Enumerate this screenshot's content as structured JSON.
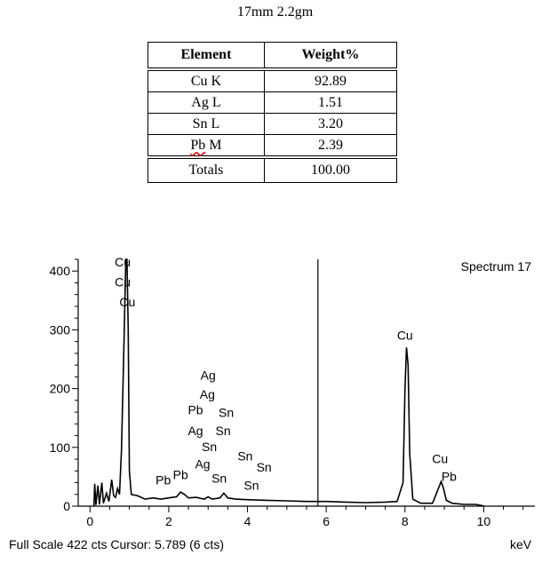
{
  "caption": "17mm  2.2gm",
  "table": {
    "headers": [
      "Element",
      "Weight%"
    ],
    "rows": [
      {
        "element": "Cu K",
        "weight": "92.89"
      },
      {
        "element": "Ag L",
        "weight": "1.51"
      },
      {
        "element": "Sn L",
        "weight": "3.20"
      },
      {
        "element_prefix": "Pb",
        "element_suffix": " M",
        "weight": "2.39"
      }
    ],
    "total": {
      "label": "Totals",
      "weight": "100.00"
    }
  },
  "spectrum": {
    "title": "Spectrum 17",
    "x_unit": "keV",
    "footer": "Full Scale 422 cts Cursor: 5.789  (6 cts)",
    "cursor_kev": 5.789,
    "xlim": [
      -0.3,
      11.3
    ],
    "ylim": [
      0,
      420
    ],
    "x_ticks": [
      0,
      2,
      4,
      6,
      8,
      10
    ],
    "y_ticks": [
      0,
      100,
      200,
      300,
      400
    ],
    "trace": [
      [
        0.1,
        0
      ],
      [
        0.12,
        38
      ],
      [
        0.15,
        2
      ],
      [
        0.2,
        35
      ],
      [
        0.24,
        3
      ],
      [
        0.3,
        40
      ],
      [
        0.34,
        5
      ],
      [
        0.42,
        22
      ],
      [
        0.48,
        8
      ],
      [
        0.55,
        45
      ],
      [
        0.6,
        18
      ],
      [
        0.65,
        15
      ],
      [
        0.7,
        30
      ],
      [
        0.75,
        20
      ],
      [
        0.8,
        95
      ],
      [
        0.84,
        210
      ],
      [
        0.88,
        330
      ],
      [
        0.91,
        420
      ],
      [
        0.94,
        420
      ],
      [
        0.97,
        300
      ],
      [
        1.0,
        60
      ],
      [
        1.05,
        20
      ],
      [
        1.2,
        18
      ],
      [
        1.4,
        12
      ],
      [
        1.6,
        14
      ],
      [
        1.8,
        12
      ],
      [
        2.0,
        14
      ],
      [
        2.2,
        16
      ],
      [
        2.3,
        24
      ],
      [
        2.4,
        20
      ],
      [
        2.5,
        14
      ],
      [
        2.7,
        15
      ],
      [
        2.9,
        12
      ],
      [
        3.0,
        16
      ],
      [
        3.1,
        12
      ],
      [
        3.3,
        14
      ],
      [
        3.4,
        22
      ],
      [
        3.5,
        14
      ],
      [
        3.7,
        12
      ],
      [
        4.0,
        11
      ],
      [
        4.5,
        10
      ],
      [
        5.0,
        9
      ],
      [
        5.5,
        8
      ],
      [
        6.0,
        8
      ],
      [
        6.5,
        7
      ],
      [
        7.0,
        6
      ],
      [
        7.5,
        7
      ],
      [
        7.8,
        8
      ],
      [
        7.95,
        40
      ],
      [
        8.0,
        200
      ],
      [
        8.04,
        270
      ],
      [
        8.08,
        240
      ],
      [
        8.12,
        90
      ],
      [
        8.2,
        12
      ],
      [
        8.4,
        5
      ],
      [
        8.7,
        5
      ],
      [
        8.85,
        30
      ],
      [
        8.92,
        42
      ],
      [
        8.98,
        30
      ],
      [
        9.05,
        10
      ],
      [
        9.2,
        5
      ],
      [
        9.5,
        3
      ],
      [
        9.8,
        3
      ],
      [
        9.95,
        1
      ],
      [
        10.0,
        0
      ]
    ],
    "peak_labels": [
      {
        "text": "Cu",
        "kev": 0.83,
        "cts": 408
      },
      {
        "text": "Cu",
        "kev": 0.83,
        "cts": 374
      },
      {
        "text": "Cu",
        "kev": 0.95,
        "cts": 340
      },
      {
        "text": "Ag",
        "kev": 3.0,
        "cts": 215
      },
      {
        "text": "Ag",
        "kev": 2.98,
        "cts": 183
      },
      {
        "text": "Pb",
        "kev": 2.68,
        "cts": 156
      },
      {
        "text": "Sn",
        "kev": 3.46,
        "cts": 152
      },
      {
        "text": "Ag",
        "kev": 2.68,
        "cts": 121
      },
      {
        "text": "Sn",
        "kev": 3.38,
        "cts": 121
      },
      {
        "text": "Sn",
        "kev": 3.03,
        "cts": 94
      },
      {
        "text": "Sn",
        "kev": 3.94,
        "cts": 78
      },
      {
        "text": "Sn",
        "kev": 4.42,
        "cts": 59
      },
      {
        "text": "Ag",
        "kev": 2.86,
        "cts": 64
      },
      {
        "text": "Pb",
        "kev": 2.3,
        "cts": 46
      },
      {
        "text": "Pb",
        "kev": 1.86,
        "cts": 37
      },
      {
        "text": "Sn",
        "kev": 3.28,
        "cts": 40
      },
      {
        "text": "Sn",
        "kev": 4.1,
        "cts": 28
      },
      {
        "text": "Cu",
        "kev": 8.0,
        "cts": 283
      },
      {
        "text": "Cu",
        "kev": 8.89,
        "cts": 73
      },
      {
        "text": "Pb",
        "kev": 9.12,
        "cts": 43
      }
    ]
  }
}
